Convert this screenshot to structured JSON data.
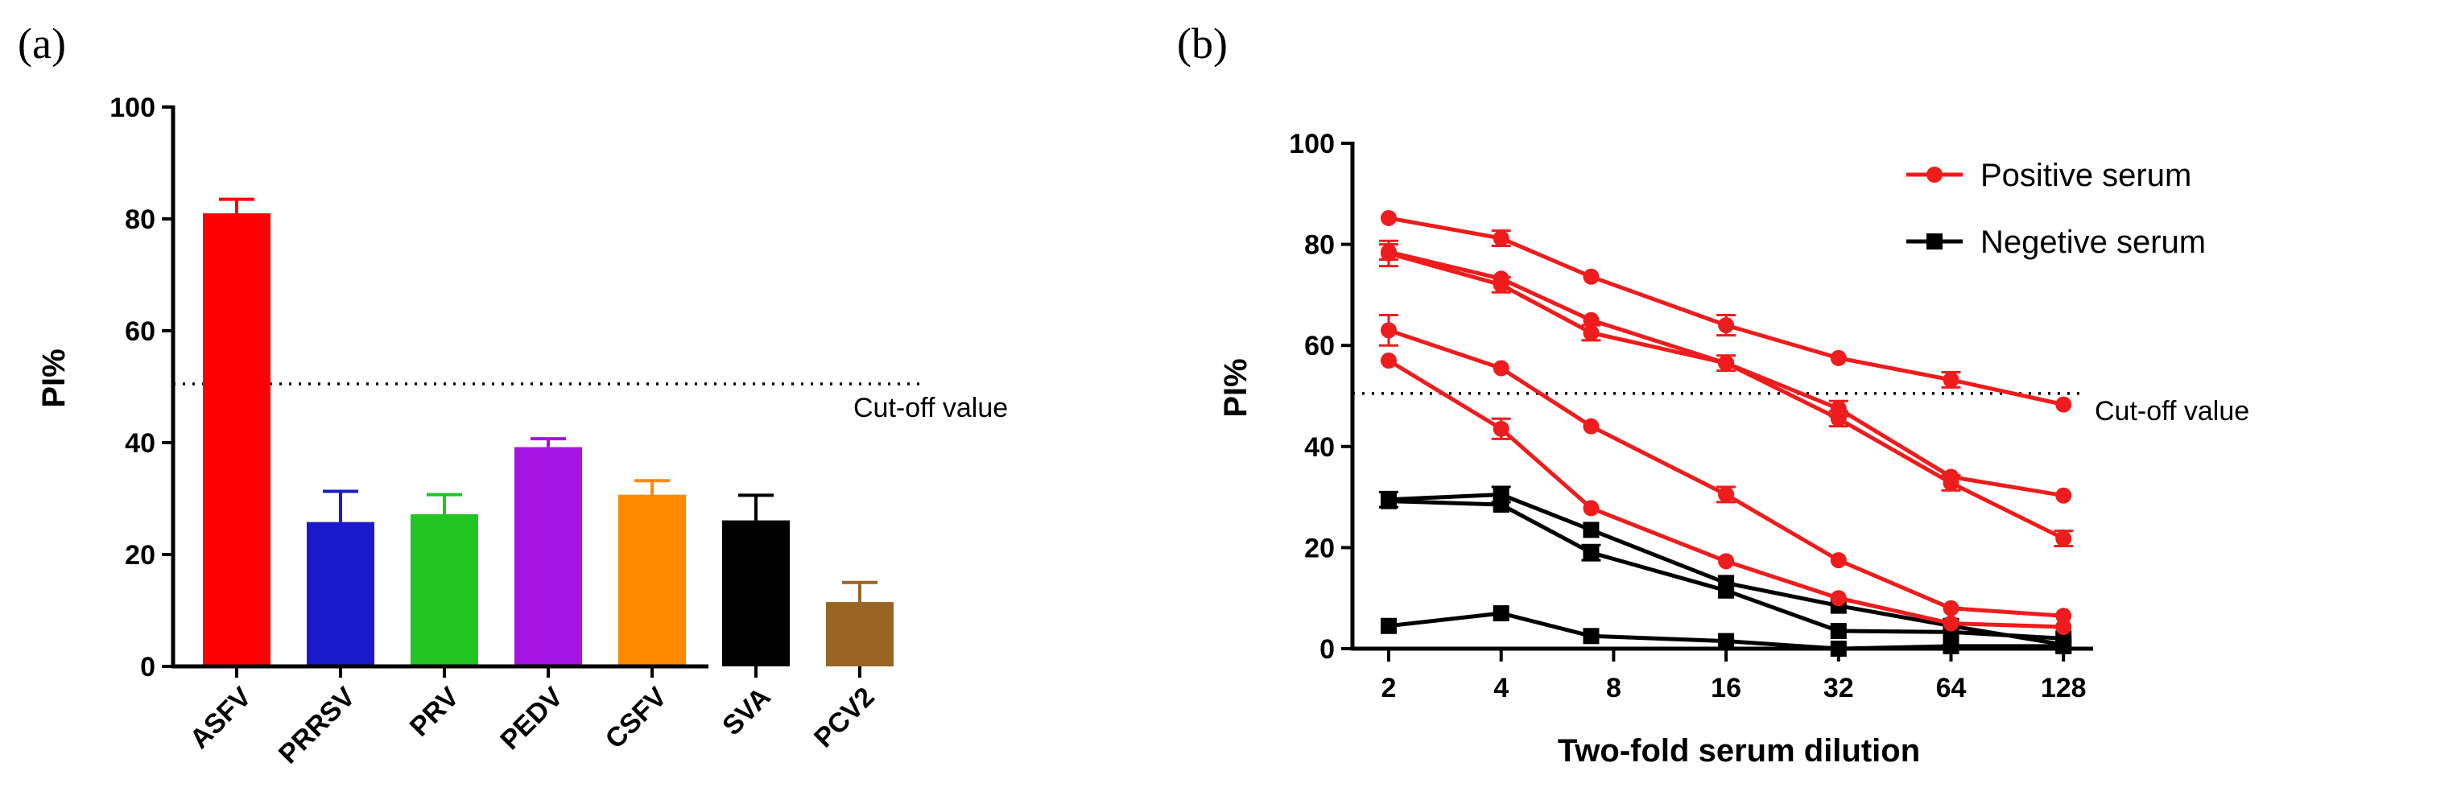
{
  "chart_data": [
    {
      "type": "bar",
      "panel_label": "(a)",
      "title": "",
      "xlabel": "",
      "ylabel": "PI%",
      "ylim": [
        0,
        100
      ],
      "yticks": [
        "0",
        "20",
        "40",
        "60",
        "80",
        "100"
      ],
      "categories": [
        "ASFV",
        "PRRSV",
        "PRV",
        "PEDV",
        "CSFV",
        "SVA",
        "PCV2"
      ],
      "values": [
        81,
        25.8,
        27.2,
        39.2,
        30.7,
        26.1,
        11.5
      ],
      "errors": [
        2.5,
        5.5,
        3.5,
        1.5,
        2.5,
        4.5,
        3.5
      ],
      "colors": [
        "#ff0000",
        "#1a1acc",
        "#22c422",
        "#a514e0",
        "#ff8a00",
        "#000000",
        "#9a6424"
      ],
      "cutoff": {
        "value": 50.5,
        "label": "Cut-off value"
      }
    },
    {
      "type": "line",
      "panel_label": "(b)",
      "title": "",
      "xlabel": "Two-fold serum dilution",
      "ylabel": "PI%",
      "ylim": [
        0,
        100
      ],
      "yticks": [
        "0",
        "20",
        "40",
        "60",
        "80",
        "100"
      ],
      "x": [
        "2",
        "4",
        "8",
        "16",
        "32",
        "64",
        "128"
      ],
      "cutoff": {
        "value": 50.5,
        "label": "Cut-off value"
      },
      "legend": [
        {
          "name": "Positive serum",
          "color": "#ee1c1c",
          "marker": "circle"
        },
        {
          "name": "Negetive serum",
          "color": "#000000",
          "marker": "square"
        }
      ],
      "series": [
        {
          "name": "Positive serum",
          "points": [
            [
              0,
              85.2
            ],
            [
              1,
              81.2
            ],
            [
              1.8,
              73.6
            ],
            [
              3,
              64
            ],
            [
              4,
              57.5
            ],
            [
              5,
              53.2
            ],
            [
              6,
              48.3
            ]
          ],
          "errors": [
            0,
            1.5,
            0,
            2,
            0,
            1.5,
            0
          ]
        },
        {
          "name": "Positive serum",
          "points": [
            [
              0,
              78.5
            ],
            [
              1,
              73.2
            ],
            [
              1.8,
              65
            ],
            [
              3,
              56.5
            ],
            [
              4,
              47.5
            ],
            [
              5,
              34
            ],
            [
              6,
              30.3
            ]
          ],
          "errors": [
            1.5,
            0,
            0,
            0,
            1.5,
            0,
            0
          ]
        },
        {
          "name": "Positive serum",
          "points": [
            [
              0,
              78.2
            ],
            [
              1,
              72
            ],
            [
              1.8,
              62.5
            ],
            [
              3,
              56.5
            ],
            [
              4,
              45.5
            ],
            [
              5,
              32.8
            ],
            [
              6,
              21.8
            ]
          ],
          "errors": [
            2.5,
            1.5,
            1.5,
            1.5,
            1.5,
            1.5,
            1.5
          ]
        },
        {
          "name": "Positive serum",
          "points": [
            [
              0,
              63
            ],
            [
              1,
              55.5
            ],
            [
              1.8,
              44
            ],
            [
              3,
              30.5
            ],
            [
              4,
              17.5
            ],
            [
              5,
              8
            ],
            [
              6,
              6.5
            ]
          ],
          "errors": [
            3,
            0,
            0,
            1.5,
            0,
            0,
            0
          ]
        },
        {
          "name": "Positive serum",
          "points": [
            [
              0,
              57
            ],
            [
              1,
              43.5
            ],
            [
              1.8,
              27.8
            ],
            [
              3,
              17.3
            ],
            [
              4,
              10
            ],
            [
              5,
              5
            ],
            [
              6,
              4.3
            ]
          ],
          "errors": [
            0,
            2,
            0,
            0,
            0,
            0,
            0
          ]
        },
        {
          "name": "Negetive serum",
          "points": [
            [
              0,
              29.5
            ],
            [
              1,
              30.5
            ],
            [
              1.8,
              23.5
            ],
            [
              3,
              13
            ],
            [
              4,
              8.5
            ],
            [
              5,
              4.5
            ],
            [
              6,
              0.8
            ]
          ],
          "errors": [
            1.5,
            1.5,
            0,
            0,
            0,
            0,
            0
          ]
        },
        {
          "name": "Negetive serum",
          "points": [
            [
              0,
              29.2
            ],
            [
              1,
              28.5
            ],
            [
              1.8,
              19
            ],
            [
              3,
              11.5
            ],
            [
              4,
              3.5
            ],
            [
              5,
              3.3
            ],
            [
              6,
              2
            ]
          ],
          "errors": [
            0,
            0,
            1.5,
            0,
            0,
            0,
            0
          ]
        },
        {
          "name": "Negetive serum",
          "points": [
            [
              0,
              4.5
            ],
            [
              1,
              7
            ],
            [
              1.8,
              2.5
            ],
            [
              3,
              1.5
            ],
            [
              4,
              0
            ],
            [
              5,
              0.5
            ],
            [
              6,
              0.5
            ]
          ],
          "errors": [
            0,
            0,
            0,
            0,
            0,
            0,
            0
          ]
        }
      ]
    }
  ]
}
